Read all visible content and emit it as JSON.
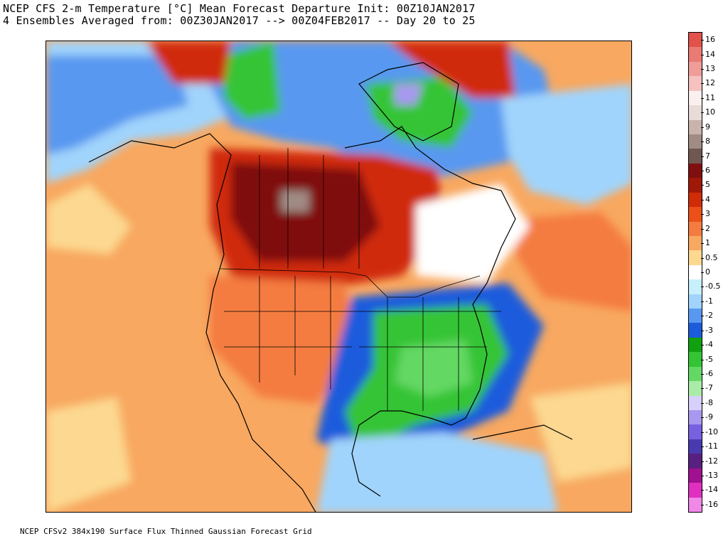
{
  "title": {
    "line1": "NCEP CFS 2-m Temperature [°C] Mean Forecast Departure Init: 00Z10JAN2017",
    "line2": "4 Ensembles Averaged from: 00Z30JAN2017 --> 00Z04FEB2017 -- Day 20 to 25"
  },
  "footer": "NCEP CFSv2 384x190 Surface Flux Thinned Gaussian Forecast Grid",
  "colorbar": {
    "labels": [
      "16",
      "14",
      "13",
      "12",
      "11",
      "10",
      "9",
      "8",
      "7",
      "6",
      "5",
      "4",
      "3",
      "2",
      "1",
      "0.5",
      "0",
      "-0.5",
      "-1",
      "-2",
      "-3",
      "-4",
      "-5",
      "-6",
      "-7",
      "-8",
      "-9",
      "-10",
      "-11",
      "-12",
      "-13",
      "-14",
      "-16"
    ],
    "colors": [
      "#e0524a",
      "#ea7a74",
      "#f09c98",
      "#f6c2c0",
      "#faf0f0",
      "#e8dcd8",
      "#c8b4ac",
      "#a08c84",
      "#705850",
      "#801010",
      "#a01808",
      "#d02c08",
      "#ec5018",
      "#f47c40",
      "#f8a860",
      "#fcd890",
      "#ffffff",
      "#c8f0fc",
      "#a0d4fc",
      "#5898f0",
      "#1c5cdc",
      "#10a010",
      "#34c434",
      "#64d864",
      "#a8eca8",
      "#d8d0fc",
      "#a898f0",
      "#7860e0",
      "#4a3ab0",
      "#582080",
      "#a01090",
      "#e030c0",
      "#f088e8"
    ]
  },
  "map": {
    "regions": [
      {
        "name": "western-canada-warm-core",
        "color": "#801010"
      },
      {
        "name": "southeast-us-cold",
        "color": "#34c434"
      },
      {
        "name": "gulf-cold",
        "color": "#1c5cdc"
      },
      {
        "name": "pacific-warm",
        "color": "#f47c40"
      },
      {
        "name": "arctic-cold",
        "color": "#5898f0"
      }
    ]
  }
}
